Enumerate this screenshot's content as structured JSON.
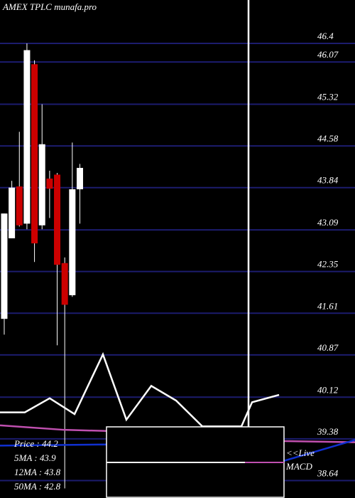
{
  "chart_data": {
    "type": "candlestick",
    "title": "AMEX  TPLC munafa.pro",
    "ylim": [
      38.33,
      47.17
    ],
    "yticks": [
      46.4,
      46.07,
      45.32,
      44.58,
      43.84,
      43.09,
      42.35,
      41.61,
      40.87,
      40.12,
      39.38,
      38.64
    ],
    "xlim": [
      -0.56,
      46.38
    ],
    "grid": true,
    "grid_color": "#1c1c6e",
    "up_color": "#ffffff",
    "down_color": "#cc0000",
    "open": [
      41.51,
      42.94,
      43.86,
      43.2,
      46.03,
      43.17,
      44.0,
      44.07,
      42.5,
      41.93,
      43.81
    ],
    "high": [
      43.38,
      43.96,
      44.83,
      46.4,
      46.1,
      45.32,
      44.14,
      44.1,
      42.6,
      44.64,
      44.26
    ],
    "low": [
      41.23,
      42.94,
      43.15,
      43.1,
      42.52,
      43.1,
      43.3,
      41.04,
      38.5,
      41.9,
      43.2
    ],
    "close": [
      43.38,
      43.84,
      43.17,
      46.28,
      42.85,
      44.61,
      43.82,
      42.47,
      41.76,
      43.81,
      44.19
    ],
    "overlays": [
      {
        "color": "#ffffff",
        "x": [
          -0.56,
          2.72,
          6.01,
          9.3,
          13.05,
          16.15,
          19.44,
          22.72,
          26.2,
          31.36,
          32.77,
          36.34
        ],
        "values": [
          39.85,
          39.85,
          40.1,
          39.82,
          40.88,
          39.72,
          40.32,
          40.06,
          39.6,
          39.6,
          40.03,
          40.16
        ]
      },
      {
        "color": "#ffffff",
        "x": [
          32.3,
          32.3
        ],
        "values": [
          47.17,
          38.96
        ]
      },
      {
        "color": "#c050b0",
        "x": [
          -0.56,
          7.89,
          13.52,
          37.0,
          46.38
        ],
        "values": [
          39.62,
          39.54,
          39.52,
          39.34,
          39.32
        ]
      },
      {
        "color": "#1030d0",
        "x": [
          -0.56,
          13.52,
          37.0,
          46.38
        ],
        "values": [
          39.26,
          39.28,
          38.99,
          39.36
        ]
      }
    ],
    "info": [
      "Price   : 44.2",
      "5MA : 43.9",
      "12MA : 43.8",
      "50MA : 42.8"
    ],
    "live_label": "<<Live",
    "macd_label": "MACD"
  }
}
